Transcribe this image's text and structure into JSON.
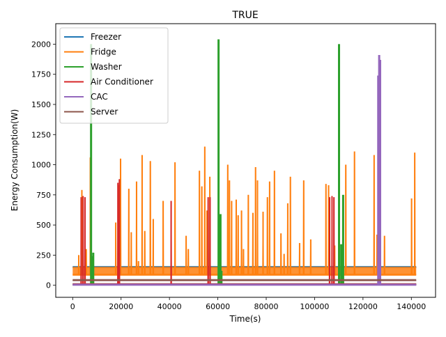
{
  "chart_data": {
    "type": "line",
    "title": "TRUE",
    "xlabel": "Time(s)",
    "ylabel": "Energy Consumption(W)",
    "xlim": [
      -7000,
      150000
    ],
    "ylim": [
      -100,
      2170
    ],
    "xticks": [
      0,
      20000,
      40000,
      60000,
      80000,
      100000,
      120000,
      140000
    ],
    "xtick_labels": [
      "0",
      "20000",
      "40000",
      "60000",
      "80000",
      "100000",
      "120000",
      "140000"
    ],
    "yticks": [
      0,
      250,
      500,
      750,
      1000,
      1250,
      1500,
      1750,
      2000
    ],
    "ytick_labels": [
      "0",
      "250",
      "500",
      "750",
      "1000",
      "1250",
      "1500",
      "1750",
      "2000"
    ],
    "legend_position": "top-left",
    "grid": false,
    "series": [
      {
        "name": "Freezer",
        "color": "#1f77b4",
        "baseline": 148,
        "x_range": [
          0,
          142000
        ],
        "spikes": []
      },
      {
        "name": "Fridge",
        "color": "#ff7f0e",
        "baseline": 90,
        "x_range": [
          0,
          142000
        ],
        "spikes": [
          {
            "x": 2500,
            "y": 250
          },
          {
            "x": 3800,
            "y": 790
          },
          {
            "x": 5600,
            "y": 300
          },
          {
            "x": 7300,
            "y": 1060
          },
          {
            "x": 17800,
            "y": 520
          },
          {
            "x": 18800,
            "y": 830
          },
          {
            "x": 19800,
            "y": 1050
          },
          {
            "x": 23200,
            "y": 800
          },
          {
            "x": 24200,
            "y": 440
          },
          {
            "x": 26400,
            "y": 860
          },
          {
            "x": 27200,
            "y": 200
          },
          {
            "x": 28700,
            "y": 1080
          },
          {
            "x": 29800,
            "y": 450
          },
          {
            "x": 32100,
            "y": 1030
          },
          {
            "x": 33300,
            "y": 550
          },
          {
            "x": 37400,
            "y": 700
          },
          {
            "x": 42300,
            "y": 1020
          },
          {
            "x": 46900,
            "y": 410
          },
          {
            "x": 47800,
            "y": 300
          },
          {
            "x": 52400,
            "y": 950
          },
          {
            "x": 53400,
            "y": 820
          },
          {
            "x": 54600,
            "y": 1150
          },
          {
            "x": 55500,
            "y": 620
          },
          {
            "x": 56700,
            "y": 900
          },
          {
            "x": 60800,
            "y": 200
          },
          {
            "x": 64100,
            "y": 1000
          },
          {
            "x": 64800,
            "y": 870
          },
          {
            "x": 65700,
            "y": 700
          },
          {
            "x": 67600,
            "y": 710
          },
          {
            "x": 68400,
            "y": 580
          },
          {
            "x": 69800,
            "y": 620
          },
          {
            "x": 70600,
            "y": 300
          },
          {
            "x": 72600,
            "y": 750
          },
          {
            "x": 74500,
            "y": 600
          },
          {
            "x": 75600,
            "y": 980
          },
          {
            "x": 76400,
            "y": 870
          },
          {
            "x": 78700,
            "y": 610
          },
          {
            "x": 80500,
            "y": 730
          },
          {
            "x": 81400,
            "y": 860
          },
          {
            "x": 83400,
            "y": 950
          },
          {
            "x": 86100,
            "y": 430
          },
          {
            "x": 87400,
            "y": 260
          },
          {
            "x": 88900,
            "y": 680
          },
          {
            "x": 90000,
            "y": 900
          },
          {
            "x": 93800,
            "y": 350
          },
          {
            "x": 95500,
            "y": 870
          },
          {
            "x": 98400,
            "y": 380
          },
          {
            "x": 104700,
            "y": 840
          },
          {
            "x": 105800,
            "y": 830
          },
          {
            "x": 108300,
            "y": 330
          },
          {
            "x": 111800,
            "y": 730
          },
          {
            "x": 112900,
            "y": 1000
          },
          {
            "x": 116500,
            "y": 1110
          },
          {
            "x": 124600,
            "y": 1080
          },
          {
            "x": 125800,
            "y": 420
          },
          {
            "x": 128900,
            "y": 410
          },
          {
            "x": 140100,
            "y": 720
          },
          {
            "x": 141400,
            "y": 1100
          }
        ]
      },
      {
        "name": "Washer",
        "color": "#2ca02c",
        "baseline": 5,
        "x_range": [
          0,
          142000
        ],
        "spikes": [
          {
            "x": 7600,
            "y": 2000
          },
          {
            "x": 8000,
            "y": 240
          },
          {
            "x": 8500,
            "y": 270
          },
          {
            "x": 60300,
            "y": 2040
          },
          {
            "x": 61100,
            "y": 590
          },
          {
            "x": 61500,
            "y": 120
          },
          {
            "x": 110100,
            "y": 2000
          },
          {
            "x": 111000,
            "y": 340
          },
          {
            "x": 111800,
            "y": 750
          }
        ]
      },
      {
        "name": "Air Conditioner",
        "color": "#d62728",
        "baseline": 5,
        "x_range": [
          0,
          142000
        ],
        "spikes": [
          {
            "x": 3500,
            "y": 730
          },
          {
            "x": 4300,
            "y": 740
          },
          {
            "x": 5100,
            "y": 730
          },
          {
            "x": 18700,
            "y": 850
          },
          {
            "x": 19300,
            "y": 880
          },
          {
            "x": 40700,
            "y": 700
          },
          {
            "x": 56000,
            "y": 730
          },
          {
            "x": 56800,
            "y": 730
          },
          {
            "x": 106200,
            "y": 730
          },
          {
            "x": 107200,
            "y": 740
          },
          {
            "x": 108000,
            "y": 730
          }
        ]
      },
      {
        "name": "CAC",
        "color": "#9467bd",
        "baseline": 2,
        "x_range": [
          0,
          142000
        ],
        "spikes": [
          {
            "x": 126300,
            "y": 1740
          },
          {
            "x": 126700,
            "y": 1910
          },
          {
            "x": 127100,
            "y": 1870
          }
        ]
      },
      {
        "name": "Server",
        "color": "#8c564b",
        "baseline": 40,
        "x_range": [
          0,
          142000
        ],
        "spikes": []
      }
    ]
  }
}
